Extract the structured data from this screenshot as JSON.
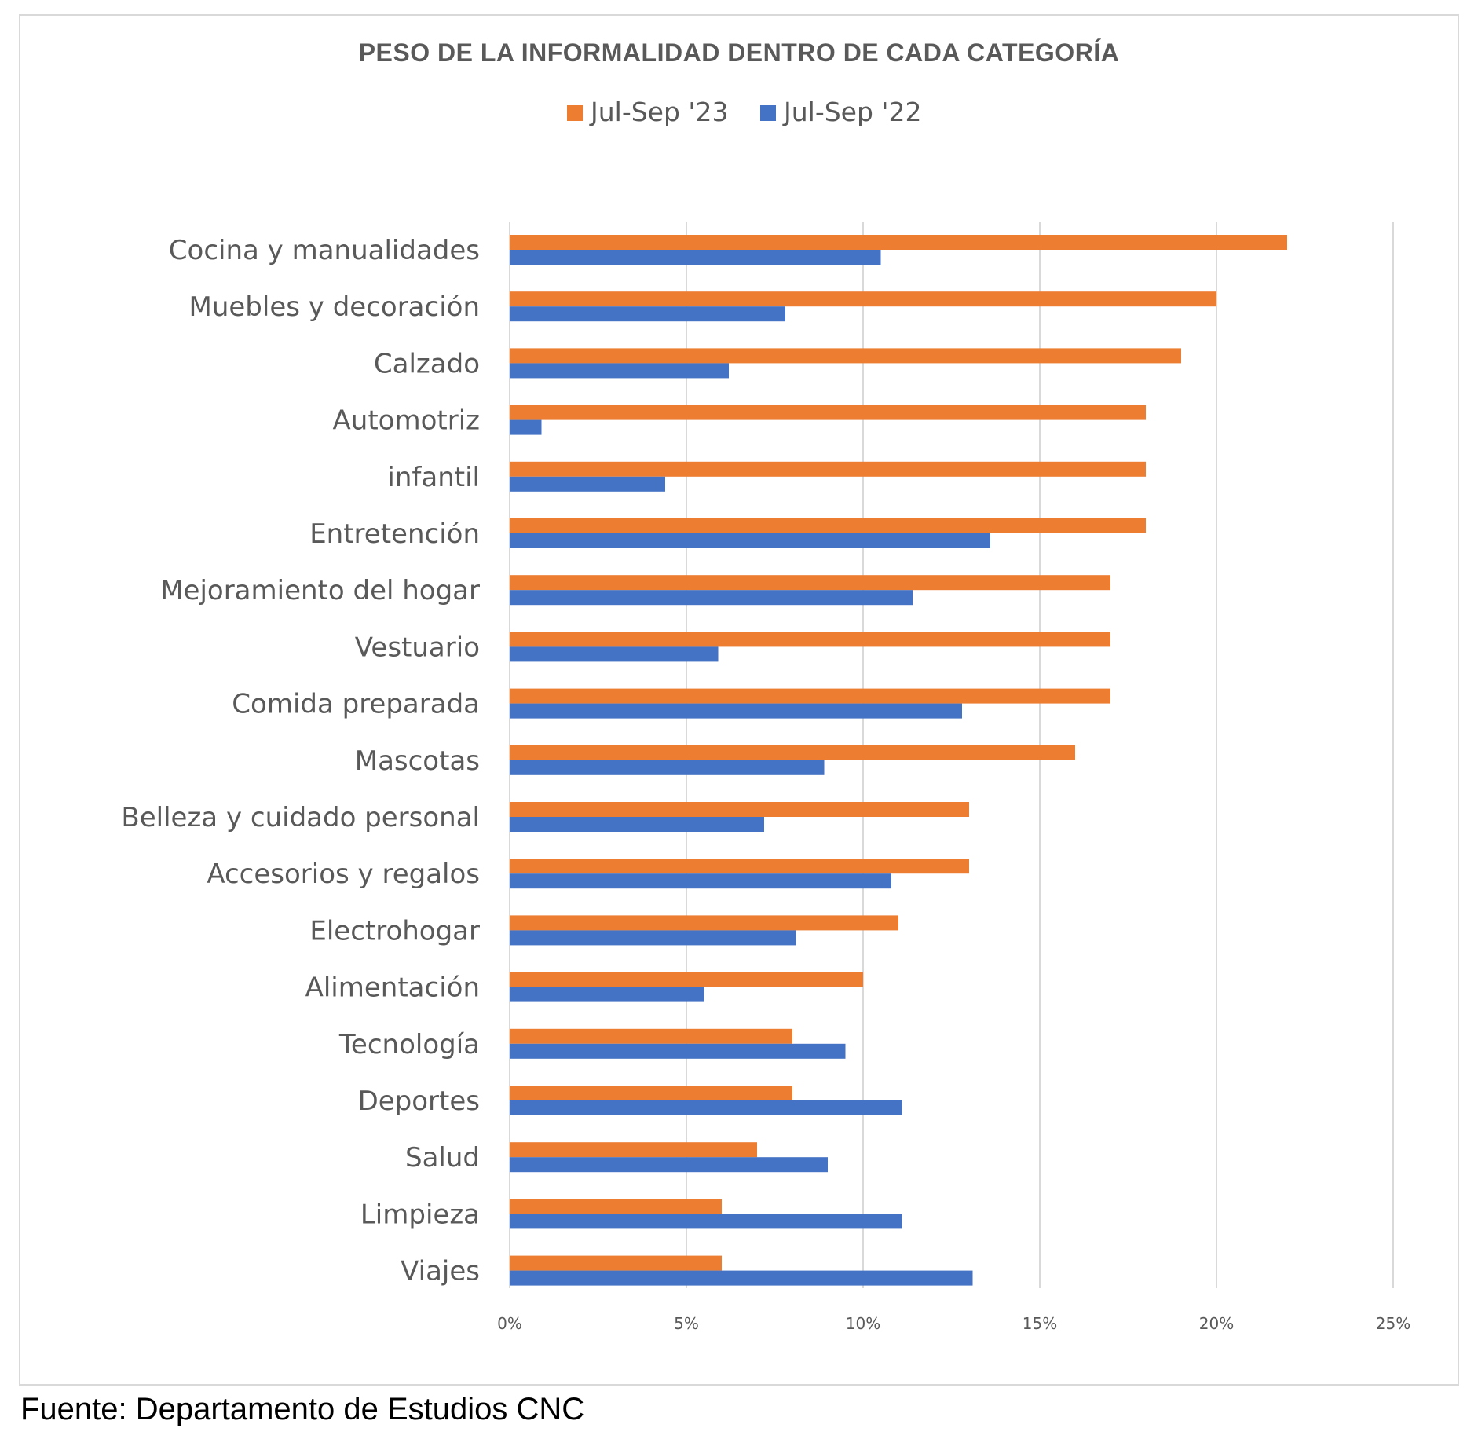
{
  "source": "Fuente: Departamento de Estudios CNC",
  "colors": {
    "series_2023": "#ED7D31",
    "series_2022": "#4472C4",
    "gridline": "#d9d9d9",
    "text": "#595959"
  },
  "chart_data": {
    "type": "bar",
    "orientation": "horizontal",
    "title": "PESO DE LA INFORMALIDAD DENTRO DE CADA CATEGORÍA",
    "xlabel": "",
    "ylabel": "",
    "xlim": [
      0,
      25
    ],
    "x_ticks": [
      0,
      5,
      10,
      15,
      20,
      25
    ],
    "x_tick_labels": [
      "0%",
      "5%",
      "10%",
      "15%",
      "20%",
      "25%"
    ],
    "grid": "vertical",
    "legend_position": "top",
    "categories": [
      "Cocina y manualidades",
      "Muebles y decoración",
      "Calzado",
      "Automotriz",
      "infantil",
      "Entretención",
      "Mejoramiento del hogar",
      "Vestuario",
      "Comida preparada",
      "Mascotas",
      "Belleza y cuidado personal",
      "Accesorios y regalos",
      "Electrohogar",
      "Alimentación",
      "Tecnología",
      "Deportes",
      "Salud",
      "Limpieza",
      "Viajes"
    ],
    "series": [
      {
        "name": "Jul-Sep '23",
        "color": "#ED7D31",
        "values": [
          22,
          20,
          19,
          18,
          18,
          18,
          17,
          17,
          17,
          16,
          13,
          13,
          11,
          10,
          8,
          8,
          7,
          6,
          6
        ]
      },
      {
        "name": "Jul-Sep '22",
        "color": "#4472C4",
        "values": [
          10.5,
          7.8,
          6.2,
          0.9,
          4.4,
          13.6,
          11.4,
          5.9,
          12.8,
          8.9,
          7.2,
          10.8,
          8.1,
          5.5,
          9.5,
          11.1,
          9.0,
          11.1,
          13.1
        ]
      }
    ]
  }
}
